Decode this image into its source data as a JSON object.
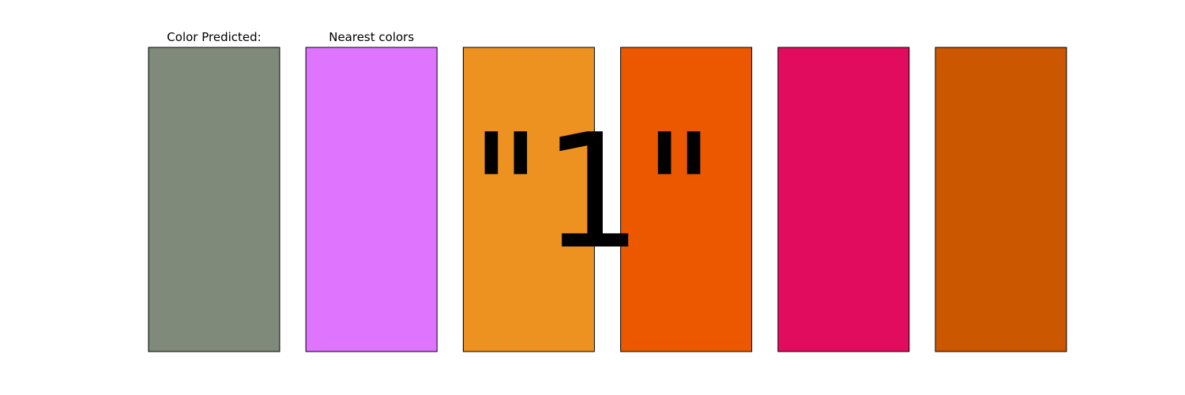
{
  "chart_data": {
    "type": "table",
    "titles": [
      "Color Predicted:",
      "Nearest colors",
      "",
      "",
      "",
      ""
    ],
    "swatches": [
      {
        "role": "predicted",
        "color": "#7f8a7b"
      },
      {
        "role": "nearest",
        "color": "#df75fe"
      },
      {
        "role": "nearest",
        "color": "#ed9220"
      },
      {
        "role": "nearest",
        "color": "#eb5800"
      },
      {
        "role": "nearest",
        "color": "#e20c5e"
      },
      {
        "role": "nearest",
        "color": "#cb5700"
      }
    ],
    "overlay_text": "\"1\"",
    "axes_visible": false
  }
}
